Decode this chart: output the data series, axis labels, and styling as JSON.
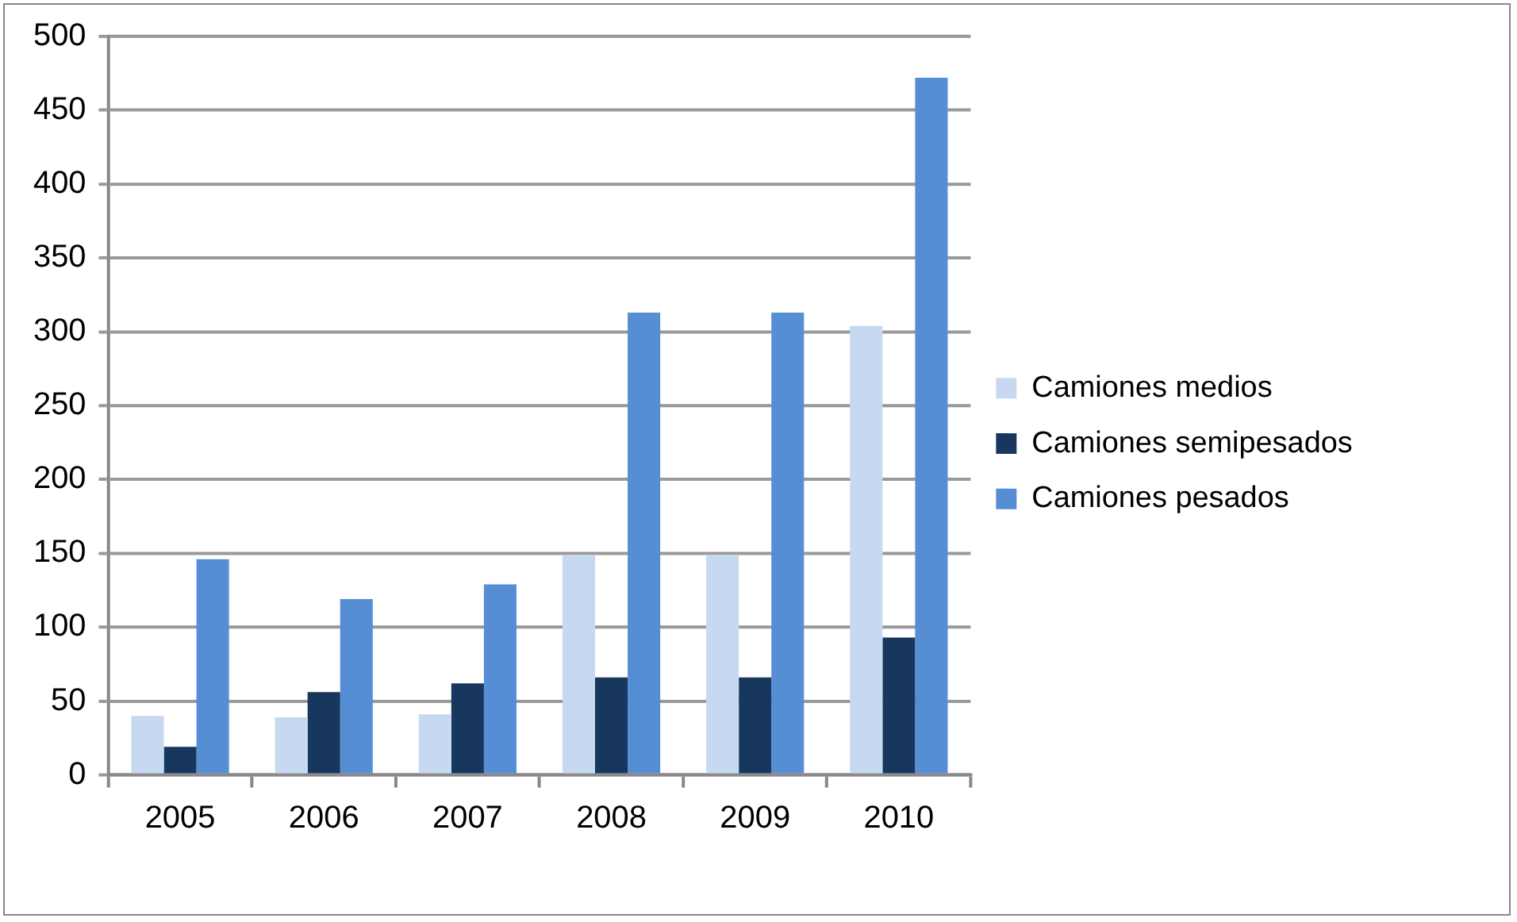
{
  "chart_data": {
    "type": "bar",
    "categories": [
      "2005",
      "2006",
      "2007",
      "2008",
      "2009",
      "2010"
    ],
    "series": [
      {
        "name": "Camiones medios",
        "color": "#c6d9f1",
        "values": [
          40,
          39,
          41,
          149,
          149,
          304
        ]
      },
      {
        "name": "Camiones semipesados",
        "color": "#17375e",
        "values": [
          19,
          56,
          62,
          66,
          66,
          93
        ]
      },
      {
        "name": "Camiones pesados",
        "color": "#558ed5",
        "values": [
          146,
          119,
          129,
          313,
          313,
          472
        ]
      }
    ],
    "ylim": [
      0,
      500
    ],
    "yticks": [
      0,
      50,
      100,
      150,
      200,
      250,
      300,
      350,
      400,
      450,
      500
    ],
    "grid": "y",
    "legend": "right"
  }
}
